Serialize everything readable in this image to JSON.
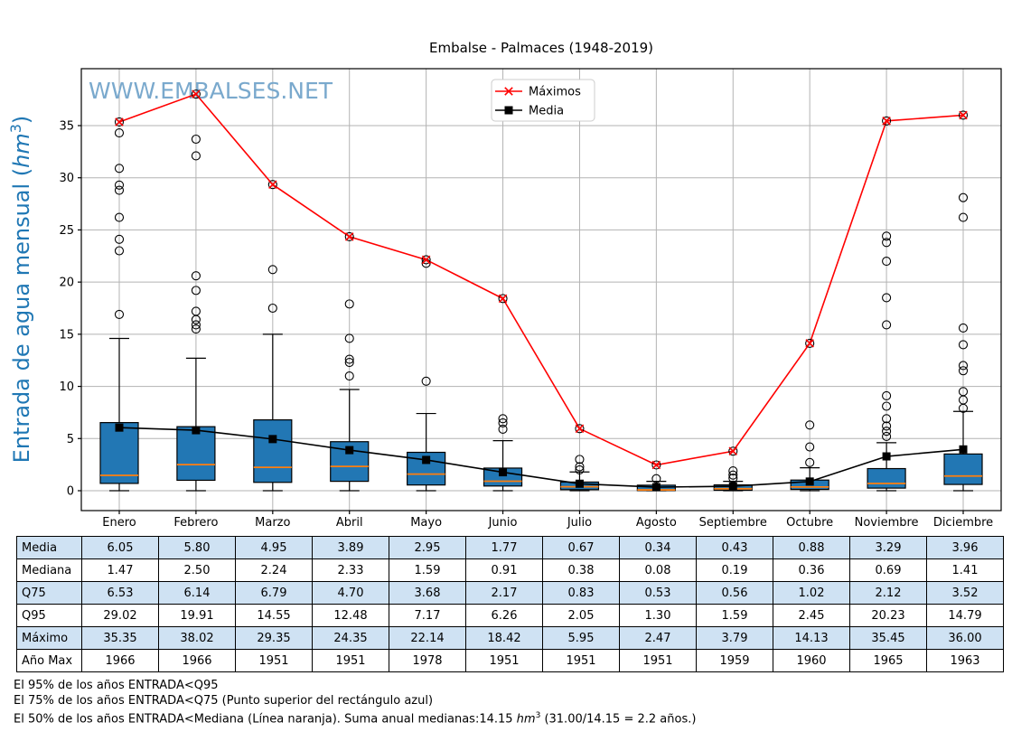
{
  "title": "Embalse - Palmaces (1948-2019)",
  "watermark": "WWW.EMBALSES.NET",
  "chart_data": {
    "type": "boxplot",
    "title": "Embalse - Palmaces (1948-2019)",
    "watermark": "WWW.EMBALSES.NET",
    "ylabel": {
      "prefix": "Entrada de agua mensual (",
      "unit_italic": "hm",
      "superscript": "3",
      "suffix": ")"
    },
    "yticks": [
      0,
      5,
      10,
      15,
      20,
      25,
      30,
      35
    ],
    "ylim": [
      -1.9,
      40.5
    ],
    "grid": true,
    "legend": {
      "position": "top-center",
      "entries": [
        {
          "label": "Máximos",
          "color": "#ff0000",
          "marker": "x"
        },
        {
          "label": "Media",
          "color": "#000000",
          "marker": "square"
        }
      ]
    },
    "months": [
      "Enero",
      "Febrero",
      "Marzo",
      "Abril",
      "Mayo",
      "Junio",
      "Julio",
      "Agosto",
      "Septiembre",
      "Octubre",
      "Noviembre",
      "Diciembre"
    ],
    "series": [
      {
        "name": "Máximos",
        "values": [
          35.35,
          38.02,
          29.35,
          24.35,
          22.14,
          18.42,
          5.95,
          2.47,
          3.79,
          14.13,
          35.45,
          36.0
        ]
      },
      {
        "name": "Media",
        "values": [
          6.05,
          5.8,
          4.95,
          3.89,
          2.95,
          1.77,
          0.67,
          0.34,
          0.43,
          0.88,
          3.29,
          3.96
        ]
      }
    ],
    "boxplots": [
      {
        "month": "Enero",
        "q1": 0.7,
        "median": 1.47,
        "q3": 6.53,
        "whisker_low": 0.0,
        "whisker_high": 14.6,
        "outliers": [
          16.9,
          23.0,
          24.1,
          26.2,
          28.8,
          29.3,
          30.9,
          34.3
        ]
      },
      {
        "month": "Febrero",
        "q1": 1.0,
        "median": 2.5,
        "q3": 6.14,
        "whisker_low": 0.0,
        "whisker_high": 12.7,
        "outliers": [
          15.5,
          15.9,
          16.4,
          17.2,
          19.2,
          20.6,
          32.1,
          33.7
        ]
      },
      {
        "month": "Marzo",
        "q1": 0.8,
        "median": 2.24,
        "q3": 6.79,
        "whisker_low": 0.0,
        "whisker_high": 15.0,
        "outliers": [
          17.5,
          21.2
        ]
      },
      {
        "month": "Abril",
        "q1": 0.9,
        "median": 2.33,
        "q3": 4.7,
        "whisker_low": 0.0,
        "whisker_high": 9.7,
        "outliers": [
          11.0,
          12.3,
          12.6,
          14.6,
          17.9
        ]
      },
      {
        "month": "Mayo",
        "q1": 0.55,
        "median": 1.59,
        "q3": 3.68,
        "whisker_low": 0.0,
        "whisker_high": 7.4,
        "outliers": [
          10.5,
          21.8
        ]
      },
      {
        "month": "Junio",
        "q1": 0.45,
        "median": 0.91,
        "q3": 2.17,
        "whisker_low": 0.0,
        "whisker_high": 4.8,
        "outliers": [
          5.9,
          6.5,
          6.9
        ]
      },
      {
        "month": "Julio",
        "q1": 0.1,
        "median": 0.38,
        "q3": 0.83,
        "whisker_low": 0.0,
        "whisker_high": 1.8,
        "outliers": [
          2.0,
          2.3,
          3.0
        ]
      },
      {
        "month": "Agosto",
        "q1": 0.01,
        "median": 0.08,
        "q3": 0.53,
        "whisker_low": 0.0,
        "whisker_high": 0.9,
        "outliers": [
          1.15
        ]
      },
      {
        "month": "Septiembre",
        "q1": 0.04,
        "median": 0.19,
        "q3": 0.56,
        "whisker_low": 0.0,
        "whisker_high": 0.9,
        "outliers": [
          1.2,
          1.5,
          1.9
        ]
      },
      {
        "month": "Octubre",
        "q1": 0.12,
        "median": 0.36,
        "q3": 1.02,
        "whisker_low": 0.0,
        "whisker_high": 2.2,
        "outliers": [
          2.7,
          4.2,
          6.3
        ]
      },
      {
        "month": "Noviembre",
        "q1": 0.25,
        "median": 0.69,
        "q3": 2.12,
        "whisker_low": 0.0,
        "whisker_high": 4.6,
        "outliers": [
          5.2,
          5.7,
          6.2,
          6.9,
          8.1,
          9.1,
          15.9,
          18.5,
          22.0,
          23.8,
          24.4
        ]
      },
      {
        "month": "Diciembre",
        "q1": 0.6,
        "median": 1.41,
        "q3": 3.52,
        "whisker_low": 0.0,
        "whisker_high": 7.6,
        "outliers": [
          7.9,
          8.7,
          9.5,
          11.5,
          12.0,
          14.0,
          15.6,
          26.2,
          28.1
        ]
      }
    ],
    "colors": {
      "box_fill": "#2277b4",
      "box_edge": "#000000",
      "median_line": "#ff7f0e",
      "max_line": "#ff0000",
      "mean_line": "#000000",
      "grid": "#b3b3b3",
      "watermark": "#7aa9cd",
      "ylabel": "#1f77b4",
      "legend_border": "#cccccc"
    }
  },
  "table": {
    "shade_color": "#cfe2f3",
    "rows": [
      {
        "label": "Media",
        "shaded": true,
        "values": [
          "6.05",
          "5.80",
          "4.95",
          "3.89",
          "2.95",
          "1.77",
          "0.67",
          "0.34",
          "0.43",
          "0.88",
          "3.29",
          "3.96"
        ]
      },
      {
        "label": "Mediana",
        "shaded": false,
        "values": [
          "1.47",
          "2.50",
          "2.24",
          "2.33",
          "1.59",
          "0.91",
          "0.38",
          "0.08",
          "0.19",
          "0.36",
          "0.69",
          "1.41"
        ]
      },
      {
        "label": "Q75",
        "shaded": true,
        "values": [
          "6.53",
          "6.14",
          "6.79",
          "4.70",
          "3.68",
          "2.17",
          "0.83",
          "0.53",
          "0.56",
          "1.02",
          "2.12",
          "3.52"
        ]
      },
      {
        "label": "Q95",
        "shaded": false,
        "values": [
          "29.02",
          "19.91",
          "14.55",
          "12.48",
          "7.17",
          "6.26",
          "2.05",
          "1.30",
          "1.59",
          "2.45",
          "20.23",
          "14.79"
        ]
      },
      {
        "label": "Máximo",
        "shaded": true,
        "values": [
          "35.35",
          "38.02",
          "29.35",
          "24.35",
          "22.14",
          "18.42",
          "5.95",
          "2.47",
          "3.79",
          "14.13",
          "35.45",
          "36.00"
        ]
      },
      {
        "label": "Año Max",
        "shaded": false,
        "values": [
          "1966",
          "1966",
          "1951",
          "1951",
          "1978",
          "1951",
          "1951",
          "1951",
          "1959",
          "1960",
          "1965",
          "1963"
        ]
      }
    ]
  },
  "footnotes": {
    "line1": "El 95% de los años ENTRADA<Q95",
    "line2": "El 75% de los años ENTRADA<Q75 (Punto superior del rectángulo azul)",
    "line3": {
      "before": "El 50% de los años ENTRADA<Mediana (Línea naranja). Suma anual medianas:14.15 ",
      "unit_italic": "hm",
      "superscript": "3",
      "after": " (31.00/14.15 = 2.2 años.)"
    }
  }
}
